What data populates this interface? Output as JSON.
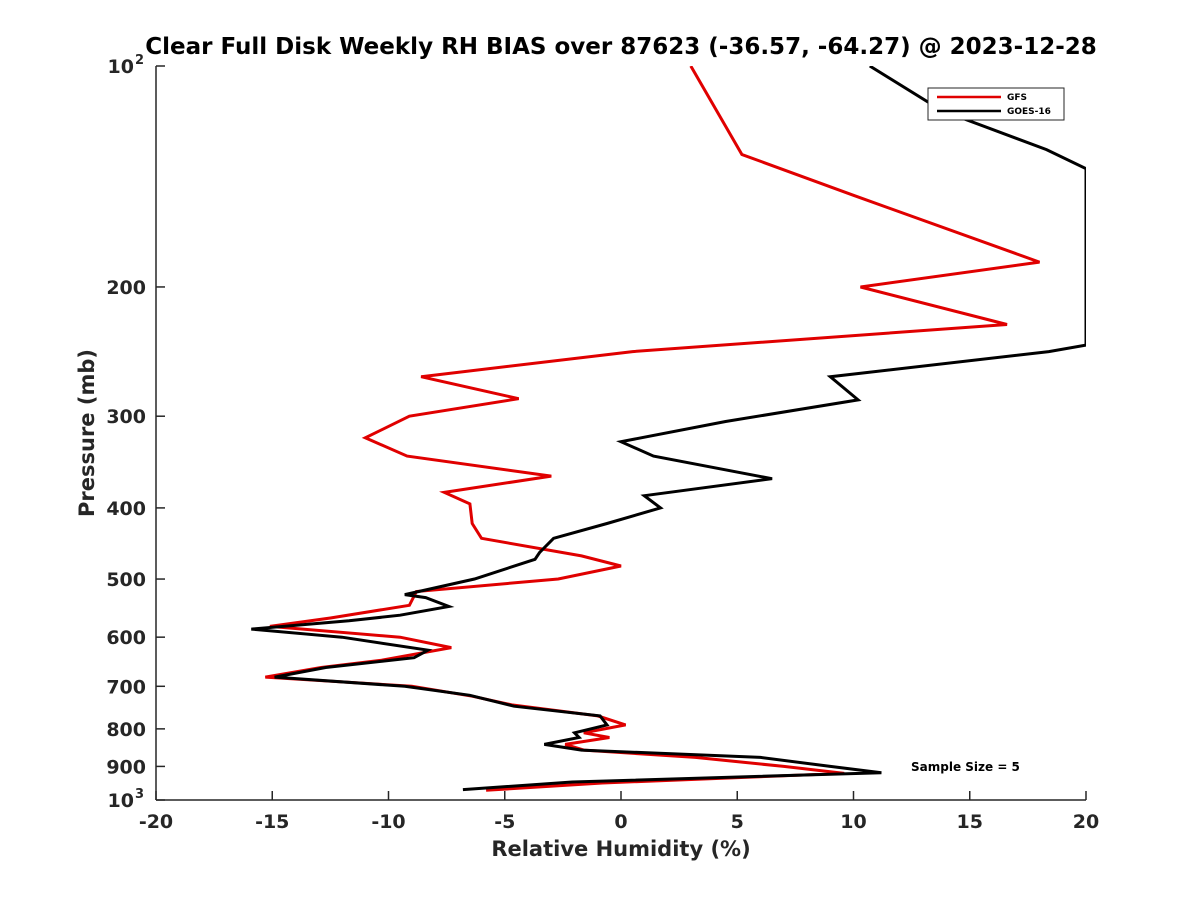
{
  "chart_data": {
    "type": "line",
    "title": "Clear Full Disk Weekly RH BIAS over 87623 (-36.57, -64.27) @ 2023-12-28",
    "xlabel": "Relative Humidity (%)",
    "ylabel": "Pressure (mb)",
    "xlim": [
      -20,
      20
    ],
    "ylim": [
      100,
      1000
    ],
    "y_scale": "log",
    "y_reversed": true,
    "x_ticks": [
      -20,
      -15,
      -10,
      -5,
      0,
      5,
      10,
      15,
      20
    ],
    "x_tick_labels": [
      "-20",
      "-15",
      "-10",
      "-5",
      "0",
      "5",
      "10",
      "15",
      "20"
    ],
    "y_ticks": [
      {
        "value": 100,
        "label": "10",
        "sup": "2"
      },
      {
        "value": 200,
        "label": "200",
        "sup": ""
      },
      {
        "value": 300,
        "label": "300",
        "sup": ""
      },
      {
        "value": 400,
        "label": "400",
        "sup": ""
      },
      {
        "value": 500,
        "label": "500",
        "sup": ""
      },
      {
        "value": 600,
        "label": "600",
        "sup": ""
      },
      {
        "value": 700,
        "label": "700",
        "sup": ""
      },
      {
        "value": 800,
        "label": "800",
        "sup": ""
      },
      {
        "value": 900,
        "label": "900",
        "sup": ""
      },
      {
        "value": 1000,
        "label": "10",
        "sup": "3"
      }
    ],
    "grid": false,
    "legend_position": "top-right",
    "series": [
      {
        "name": "GFS",
        "color": "#e00000",
        "points": [
          [
            3.0,
            100
          ],
          [
            5.2,
            132
          ],
          [
            10.0,
            150
          ],
          [
            18.0,
            185
          ],
          [
            10.3,
            200
          ],
          [
            16.6,
            225
          ],
          [
            0.5,
            245
          ],
          [
            -8.6,
            265
          ],
          [
            -4.4,
            284
          ],
          [
            -9.1,
            300
          ],
          [
            -11.0,
            321
          ],
          [
            -9.2,
            340
          ],
          [
            -3.0,
            362
          ],
          [
            -7.6,
            381
          ],
          [
            -6.5,
            395
          ],
          [
            -6.4,
            420
          ],
          [
            -6.0,
            440
          ],
          [
            -1.7,
            465
          ],
          [
            0.0,
            480
          ],
          [
            -2.7,
            500
          ],
          [
            -8.8,
            520
          ],
          [
            -9.1,
            543
          ],
          [
            -12.5,
            565
          ],
          [
            -15.1,
            580
          ],
          [
            -9.5,
            600
          ],
          [
            -7.3,
            620
          ],
          [
            -10.3,
            645
          ],
          [
            -12.9,
            660
          ],
          [
            -15.3,
            680
          ],
          [
            -9.0,
            700
          ],
          [
            -6.4,
            722
          ],
          [
            -4.7,
            742
          ],
          [
            -1.0,
            768
          ],
          [
            0.2,
            790
          ],
          [
            -1.6,
            810
          ],
          [
            -0.5,
            822
          ],
          [
            -2.4,
            840
          ],
          [
            -1.6,
            855
          ],
          [
            3.2,
            875
          ],
          [
            7.0,
            900
          ],
          [
            9.6,
            920
          ],
          [
            -0.8,
            948
          ],
          [
            -5.8,
            970
          ]
        ]
      },
      {
        "name": "GOES-16",
        "color": "#000000",
        "points": [
          [
            10.7,
            100
          ],
          [
            13.8,
            115
          ],
          [
            18.3,
            130
          ],
          [
            20.0,
            138
          ],
          [
            20.0,
            240
          ],
          [
            18.4,
            245
          ],
          [
            9.0,
            265
          ],
          [
            10.2,
            285
          ],
          [
            4.5,
            305
          ],
          [
            0.0,
            325
          ],
          [
            1.4,
            340
          ],
          [
            6.5,
            365
          ],
          [
            1.0,
            385
          ],
          [
            1.7,
            400
          ],
          [
            -0.6,
            420
          ],
          [
            -2.9,
            440
          ],
          [
            -3.5,
            460
          ],
          [
            -3.7,
            470
          ],
          [
            -6.3,
            500
          ],
          [
            -9.3,
            525
          ],
          [
            -8.4,
            530
          ],
          [
            -7.4,
            545
          ],
          [
            -9.5,
            560
          ],
          [
            -11.7,
            570
          ],
          [
            -15.9,
            585
          ],
          [
            -12.0,
            600
          ],
          [
            -8.3,
            625
          ],
          [
            -8.9,
            640
          ],
          [
            -12.7,
            660
          ],
          [
            -14.9,
            680
          ],
          [
            -9.3,
            700
          ],
          [
            -6.5,
            720
          ],
          [
            -4.6,
            745
          ],
          [
            -0.9,
            768
          ],
          [
            -0.6,
            790
          ],
          [
            -2.0,
            810
          ],
          [
            -1.8,
            822
          ],
          [
            -3.3,
            840
          ],
          [
            -1.7,
            855
          ],
          [
            6.0,
            875
          ],
          [
            9.0,
            900
          ],
          [
            11.2,
            918
          ],
          [
            -2.1,
            945
          ],
          [
            -6.8,
            968
          ]
        ]
      }
    ],
    "annotations": [
      {
        "text": "Sample Size = 5"
      }
    ]
  }
}
